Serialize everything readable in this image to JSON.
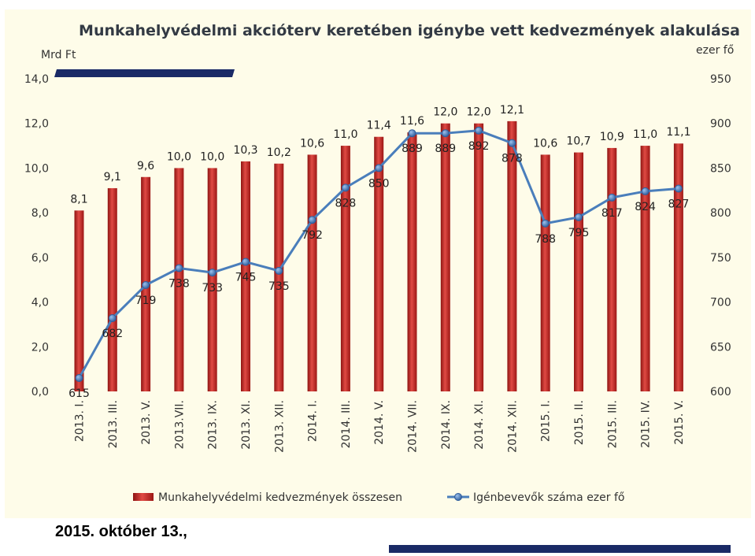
{
  "chart_data": {
    "type": "bar",
    "title": "Munkahelyvédelmi akcióterv keretében igénybe vett kedvezmények alakulása",
    "y_left_label": "Mrd Ft",
    "y_right_label": "ezer fő",
    "categories": [
      "2013. I.",
      "2013. III.",
      "2013. V.",
      "2013.VII.",
      "2013. IX.",
      "2013. XI.",
      "2013. XII.",
      "2014. I.",
      "2014. III.",
      "2014. V.",
      "2014. VII.",
      "2014. IX.",
      "2014. XI.",
      "2014. XII.",
      "2015. I.",
      "2015. II.",
      "2015. III.",
      "2015. IV.",
      "2015. V."
    ],
    "series": [
      {
        "name": "Munkahelyvédelmi kedvezmények összesen",
        "type": "bar",
        "axis": "left",
        "color": "#c0201e",
        "values": [
          8.1,
          9.1,
          9.6,
          10.0,
          10.0,
          10.3,
          10.2,
          10.6,
          11.0,
          11.4,
          11.6,
          12.0,
          12.0,
          12.1,
          10.6,
          10.7,
          10.9,
          11.0,
          11.1
        ],
        "labels": [
          "8,1",
          "9,1",
          "9,6",
          "10,0",
          "10,0",
          "10,3",
          "10,2",
          "10,6",
          "11,0",
          "11,4",
          "11,6",
          "12,0",
          "12,0",
          "12,1",
          "10,6",
          "10,7",
          "10,9",
          "11,0",
          "11,1"
        ]
      },
      {
        "name": "Igénbevevők száma ezer fő",
        "type": "line",
        "axis": "right",
        "color": "#4a7ebb",
        "values": [
          615,
          682,
          719,
          738,
          733,
          745,
          735,
          792,
          828,
          850,
          889,
          889,
          892,
          878,
          788,
          795,
          817,
          824,
          827
        ],
        "labels": [
          "615",
          "682",
          "719",
          "738",
          "733",
          "745",
          "735",
          "792",
          "828",
          "850",
          "889",
          "889",
          "892",
          "878",
          "788",
          "795",
          "817",
          "824",
          "827"
        ]
      }
    ],
    "y_left": {
      "min": 0,
      "max": 14,
      "ticks": [
        "0,0",
        "2,0",
        "4,0",
        "6,0",
        "8,0",
        "10,0",
        "12,0",
        "14,0"
      ]
    },
    "y_right": {
      "min": 600,
      "max": 950,
      "ticks": [
        "600",
        "650",
        "700",
        "750",
        "800",
        "850",
        "900",
        "950"
      ]
    },
    "grid": false,
    "legend_position": "bottom"
  },
  "footer": {
    "date": "2015. október 13.,"
  }
}
